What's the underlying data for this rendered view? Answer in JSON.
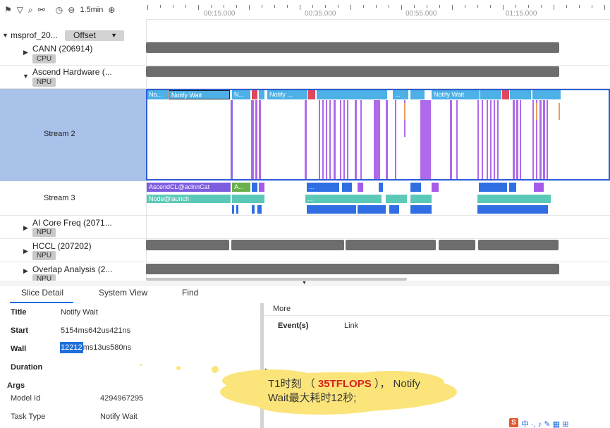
{
  "toolbar": {
    "icons": [
      "flag-icon",
      "filter-icon",
      "search-icon",
      "link-icon",
      "timer-icon",
      "zoom-out-icon",
      "zoom-in-icon"
    ],
    "zoom_label": "1.5min"
  },
  "ruler": {
    "labels": [
      "00:15.000",
      "00:35.000",
      "00:55.000",
      "01:15.000"
    ]
  },
  "tracks": {
    "root": {
      "name": "msprof_20...",
      "offset_label": "Offset"
    },
    "cann": {
      "name": "CANN (206914)",
      "tag": "CPU"
    },
    "ascend": {
      "name": "Ascend Hardware (...",
      "tag": "NPU"
    },
    "stream2": {
      "name": "Stream 2"
    },
    "stream3": {
      "name": "Stream 3"
    },
    "aicore": {
      "name": "AI Core Freq (2071...",
      "tag": "NPU"
    },
    "hccl": {
      "name": "HCCL (207202)",
      "tag": "NPU"
    },
    "overlap": {
      "name": "Overlap Analysis (2...",
      "tag": "NPU"
    }
  },
  "stream2_slices": [
    "No...",
    "Notify Wait",
    "N...",
    "Notify ...",
    "...",
    "Notify Wait"
  ],
  "stream3_slices": {
    "acl": "AscendCL@aclnnCat",
    "a": "A...",
    "node": "Node@launch",
    "dots": "..."
  },
  "colors": {
    "accent_blue": "#1e6fd9",
    "selection_border": "#2b5cd6",
    "selected_row": "#a9c2ea",
    "slice_blue": "#4db0e6",
    "slice_purple": "#a65ae8",
    "slice_violet": "#7d5ce0",
    "slice_teal": "#5cc9b8",
    "slice_red": "#e0475f",
    "track_gray": "#6d6d6d"
  },
  "detail": {
    "tabs": [
      "Slice Detail",
      "System View",
      "Find"
    ],
    "title_label": "Title",
    "title_value": "Notify Wait",
    "start_label": "Start",
    "start_value": "5154ms642us421ns",
    "wall_label": "Wall",
    "wall_value_hl": "12212",
    "wall_value_rest": "ms13us580ns",
    "duration_label": "Duration",
    "args_label": "Args",
    "model_id_label": "Model Id",
    "model_id_value": "4294967295",
    "task_type_label": "Task Type",
    "task_type_value": "Notify Wait"
  },
  "more": {
    "title": "More",
    "col_events": "Event(s)",
    "col_link": "Link"
  },
  "annotation": {
    "line1_prefix": "T1时刻 （",
    "highlight": "35TFLOPS",
    "line1_suffix": "）， Notify",
    "line2": "Wait最大耗时12秒;"
  },
  "ime_bar": "中 ·, ♪ ✎ ▦ ⊞"
}
